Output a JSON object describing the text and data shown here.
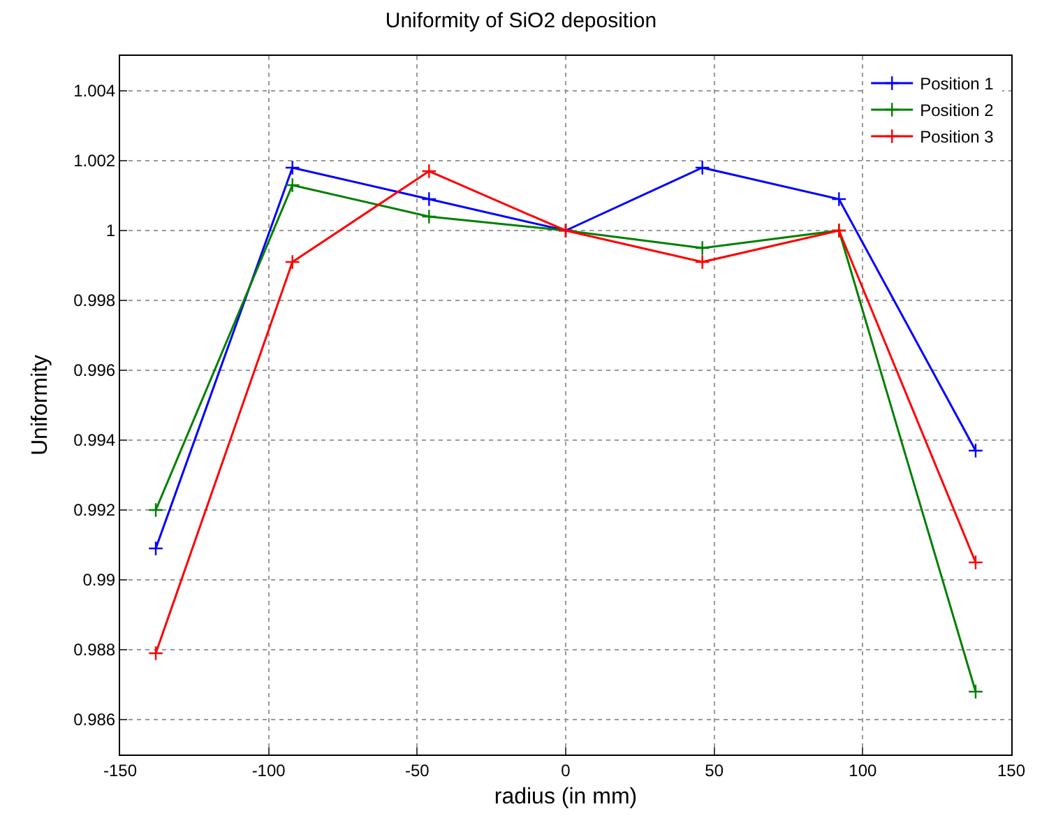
{
  "chart_data": {
    "type": "line",
    "title": "Uniformity of SiO2 deposition",
    "xlabel": "radius (in mm)",
    "ylabel": "Uniformity",
    "x": [
      -138,
      -92,
      -46,
      0,
      46,
      92,
      138
    ],
    "series": [
      {
        "name": "Position 1",
        "color": "#0000ff",
        "values": [
          0.9909,
          1.0018,
          1.0009,
          1.0,
          1.0018,
          1.0009,
          0.9937
        ]
      },
      {
        "name": "Position 2",
        "color": "#008000",
        "values": [
          0.992,
          1.0013,
          1.0004,
          1.0,
          0.9995,
          1.0,
          0.9868
        ]
      },
      {
        "name": "Position 3",
        "color": "#ff0000",
        "values": [
          0.9879,
          0.9991,
          1.0017,
          1.0,
          0.9991,
          1.0,
          0.9905
        ]
      }
    ],
    "xlim": [
      -150,
      150
    ],
    "xticks": [
      -150,
      -100,
      -50,
      0,
      50,
      100,
      150
    ],
    "ylim": [
      0.985,
      1.005
    ],
    "yticks": [
      0.986,
      0.988,
      0.99,
      0.992,
      0.994,
      0.996,
      0.998,
      1,
      1.002,
      1.004
    ],
    "grid": true,
    "legend": "top right",
    "marker": "cross",
    "line_style": "solid"
  }
}
